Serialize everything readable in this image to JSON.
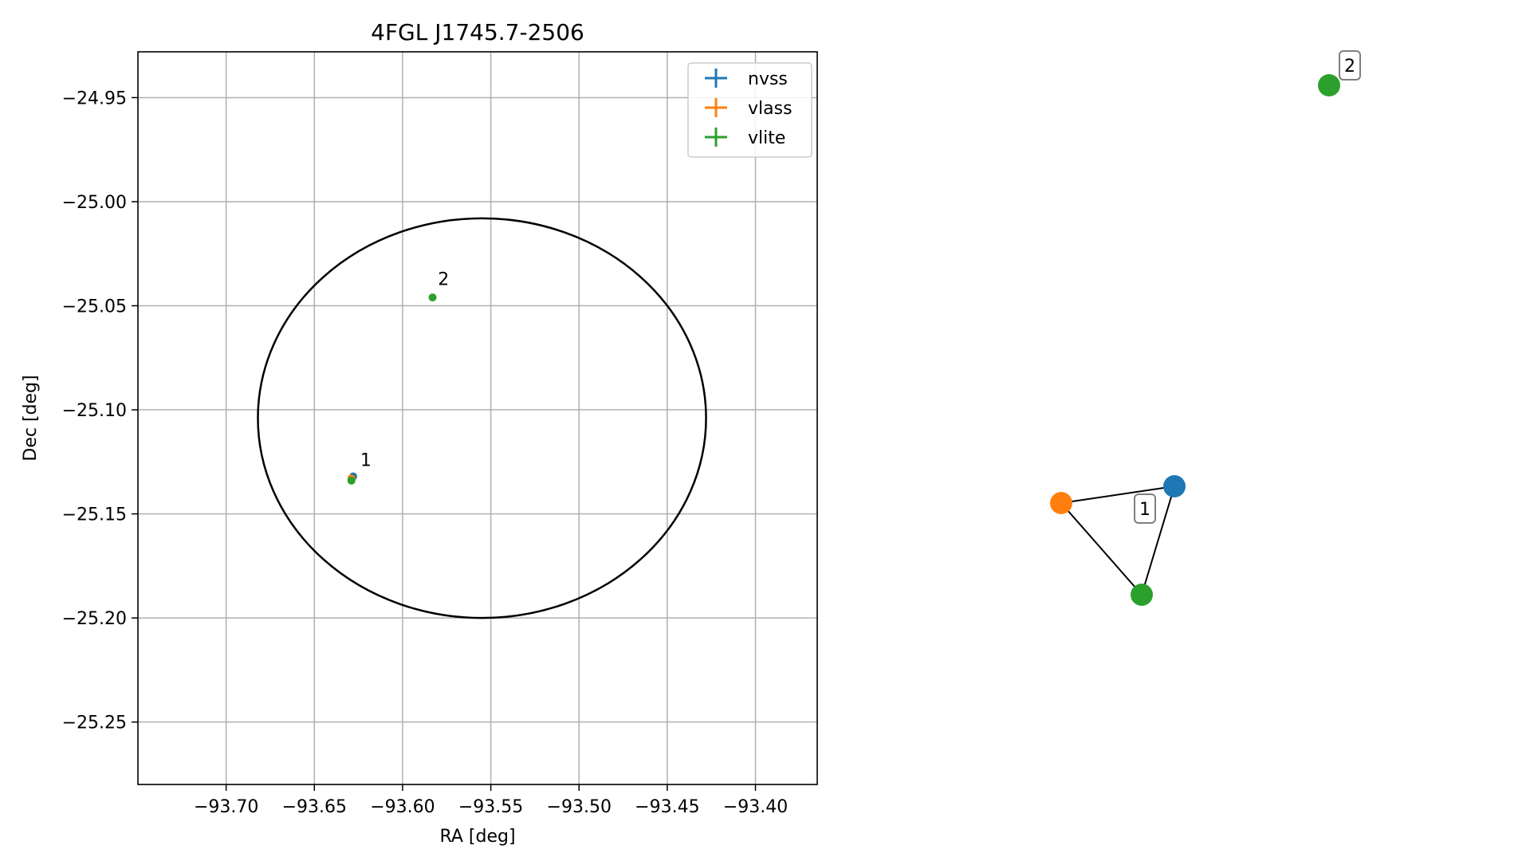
{
  "chart_data": [
    {
      "type": "scatter",
      "title": "4FGL J1745.7-2506",
      "xlabel": "RA [deg]",
      "ylabel": "Dec [deg]",
      "xlim": [
        -93.75,
        -93.365
      ],
      "ylim": [
        -25.28,
        -24.928
      ],
      "xticks": [
        -93.7,
        -93.65,
        -93.6,
        -93.55,
        -93.5,
        -93.45,
        -93.4
      ],
      "xtick_labels": [
        "−93.70",
        "−93.65",
        "−93.60",
        "−93.55",
        "−93.50",
        "−93.45",
        "−93.40"
      ],
      "yticks": [
        -24.95,
        -25.0,
        -25.05,
        -25.1,
        -25.15,
        -25.2,
        -25.25
      ],
      "ytick_labels": [
        "−24.95",
        "−25.00",
        "−25.05",
        "−25.10",
        "−25.15",
        "−25.20",
        "−25.25"
      ],
      "grid": true,
      "legend_position": "top-right",
      "ellipse": {
        "center": [
          -93.555,
          -25.104
        ],
        "ra_radius": 0.127,
        "dec_radius": 0.096,
        "color": "#000000"
      },
      "series": [
        {
          "name": "nvss",
          "color": "#1f77b4",
          "points": [
            {
              "x": -93.628,
              "y": -25.132
            }
          ]
        },
        {
          "name": "vlass",
          "color": "#ff7f0e",
          "points": [
            {
              "x": -93.629,
              "y": -25.133
            }
          ]
        },
        {
          "name": "vlite",
          "color": "#2ca02c",
          "points": [
            {
              "x": -93.629,
              "y": -25.134
            },
            {
              "x": -93.583,
              "y": -25.046
            }
          ]
        }
      ],
      "annotations": [
        {
          "label": "1",
          "x": -93.624,
          "y": -25.127
        },
        {
          "label": "2",
          "x": -93.58,
          "y": -25.04
        }
      ]
    },
    {
      "type": "network",
      "nodes": [
        {
          "id": "nvss",
          "color": "#1f77b4"
        },
        {
          "id": "vlass",
          "color": "#ff7f0e"
        },
        {
          "id": "vlite-1",
          "color": "#2ca02c"
        },
        {
          "id": "vlite-2",
          "color": "#2ca02c"
        }
      ],
      "edges": [
        [
          "nvss",
          "vlass"
        ],
        [
          "vlass",
          "vlite-1"
        ],
        [
          "nvss",
          "vlite-1"
        ]
      ],
      "group_labels": [
        "1",
        "2"
      ]
    }
  ]
}
